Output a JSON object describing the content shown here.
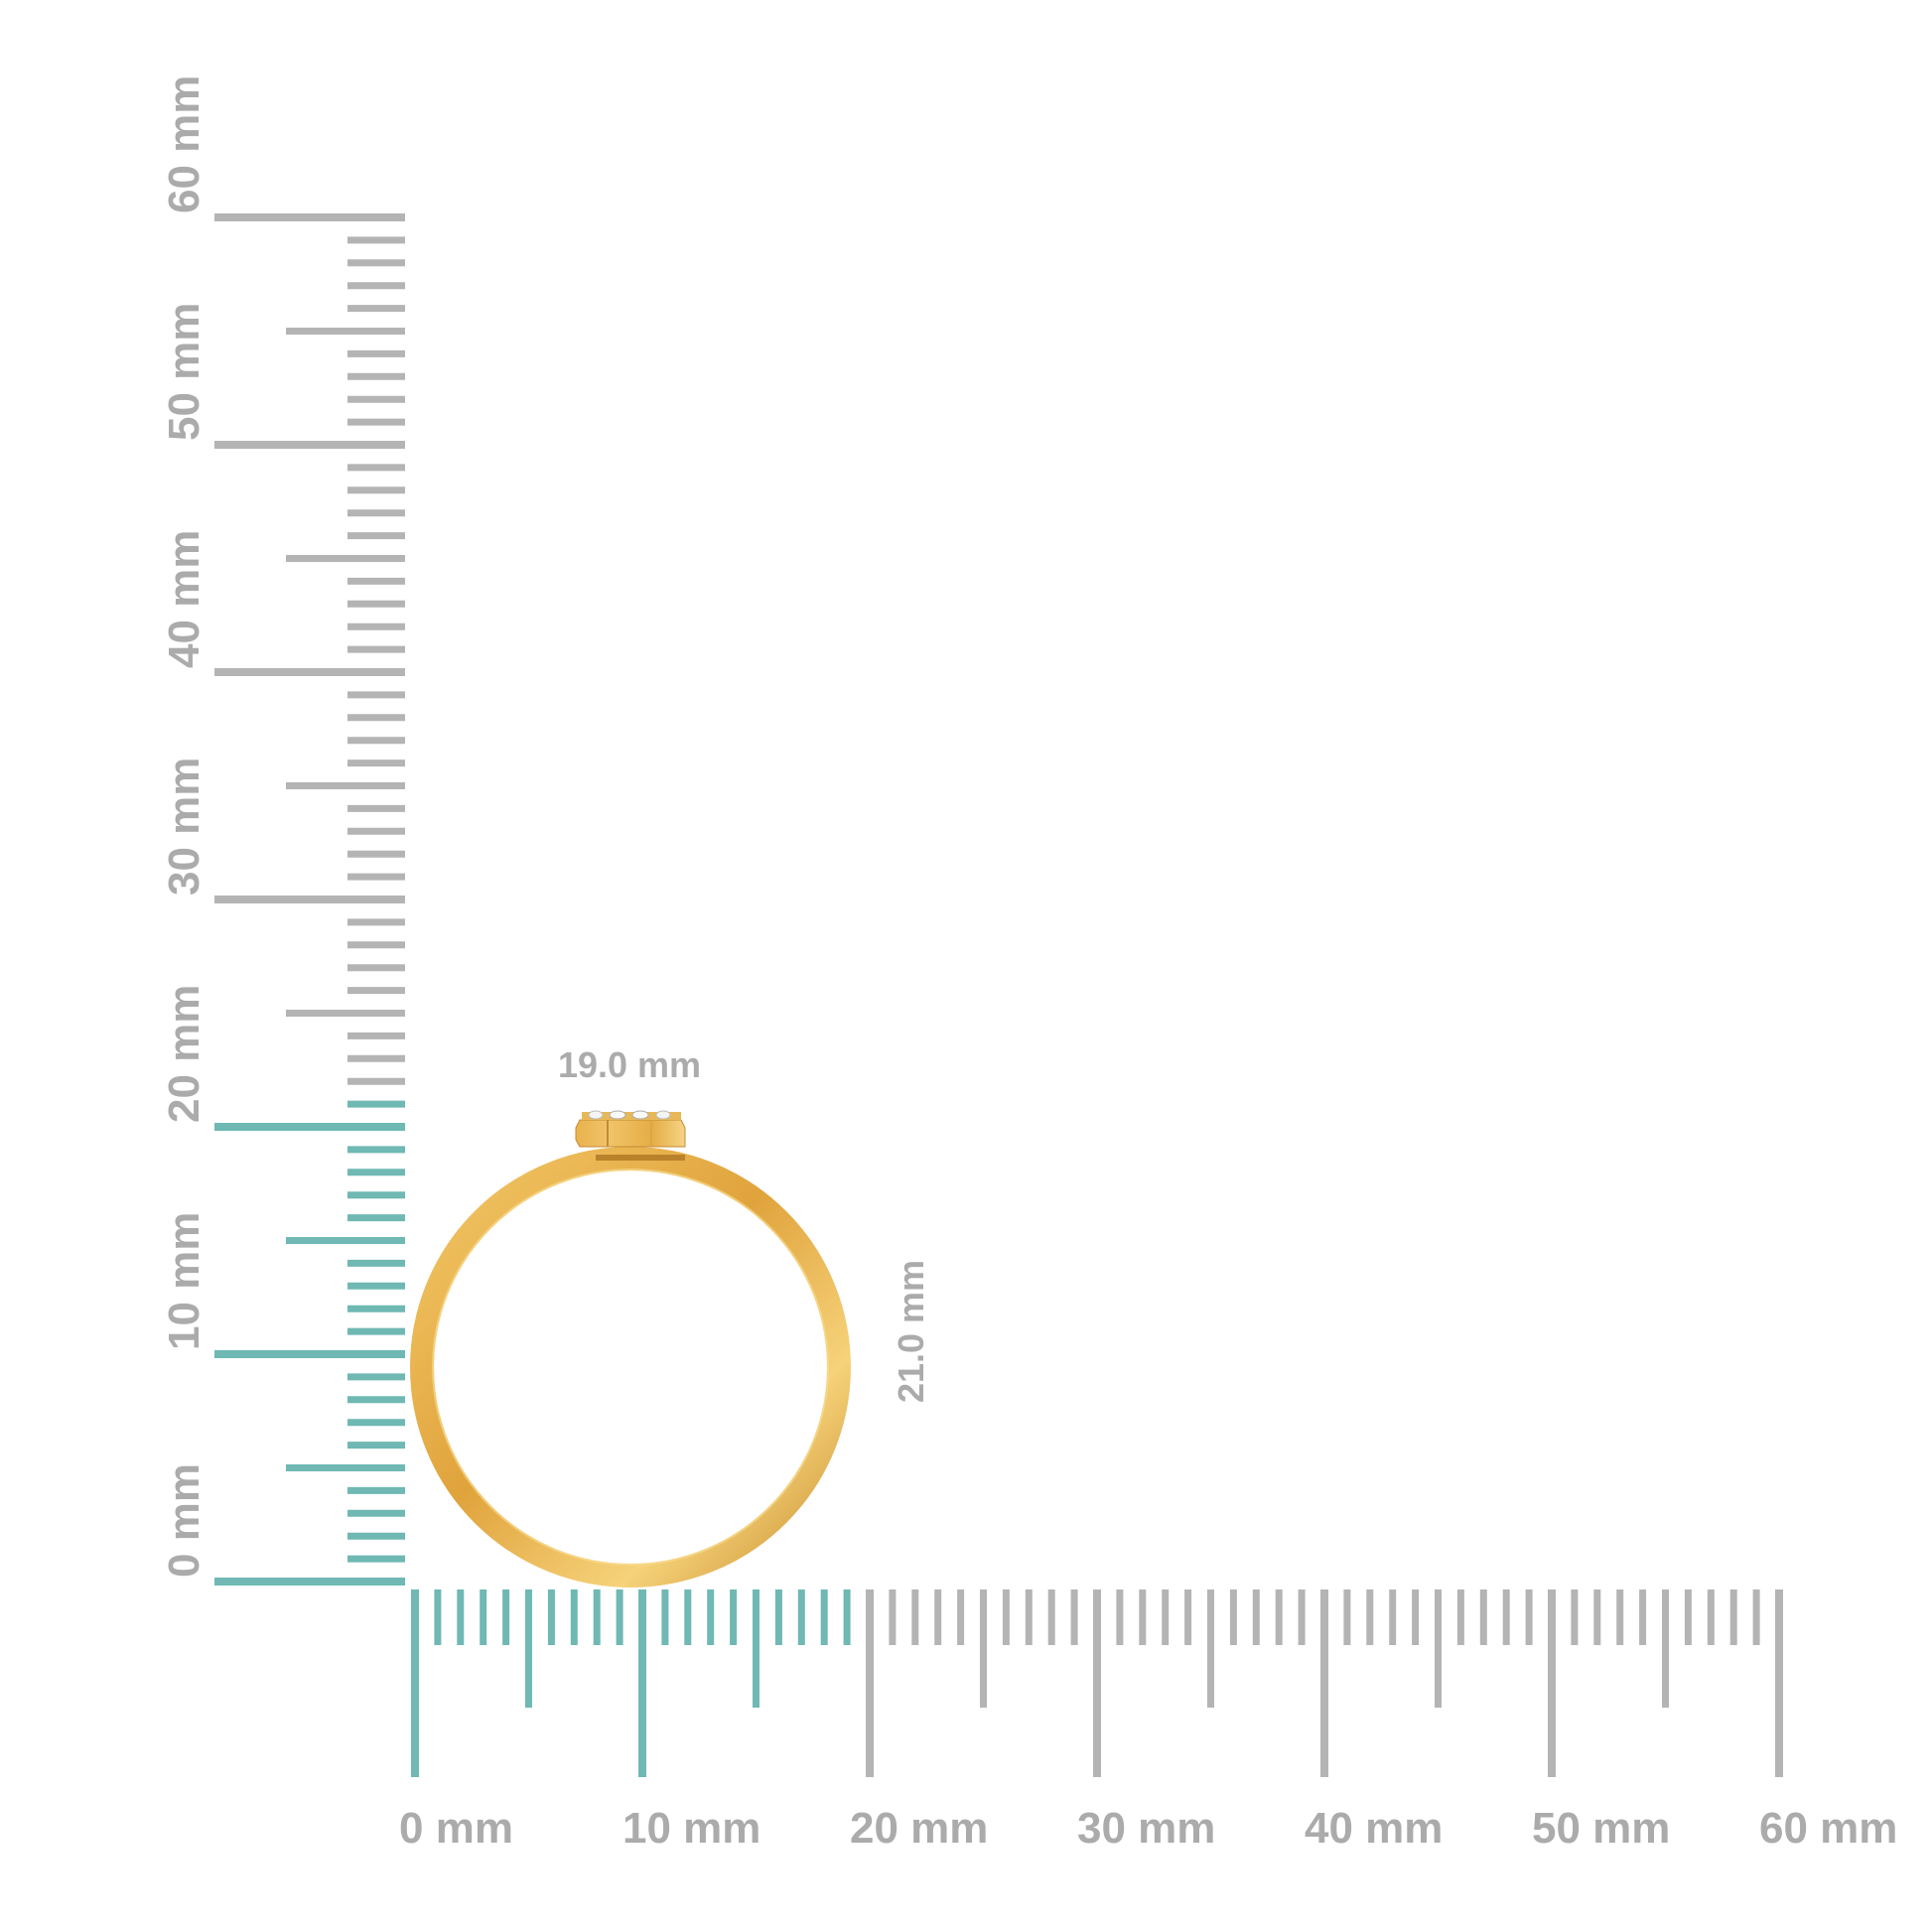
{
  "units": "mm",
  "horizontal_ruler": {
    "range_mm": [
      0,
      60
    ],
    "highlight_to_mm": 19,
    "labels": [
      "0 mm",
      "10 mm",
      "20 mm",
      "30 mm",
      "40 mm",
      "50 mm",
      "60 mm"
    ]
  },
  "vertical_ruler": {
    "range_mm": [
      0,
      60
    ],
    "highlight_to_mm": 21,
    "labels": [
      "0 mm",
      "10 mm",
      "20 mm",
      "30 mm",
      "40 mm",
      "50 mm",
      "60 mm"
    ]
  },
  "dimensions": {
    "width_label": "19.0 mm",
    "height_label": "21.0 mm"
  },
  "colors": {
    "highlight": "#6fb8b3",
    "ruler": "#b4b4b4",
    "label": "#ababab",
    "gold": "#e8b04a"
  }
}
